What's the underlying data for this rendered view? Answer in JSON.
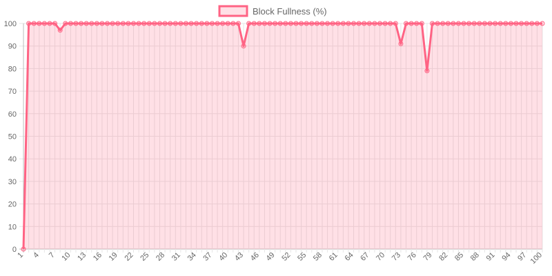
{
  "colors": {
    "line": "#ff6384",
    "fill": "rgba(255, 99, 132, 0.2)",
    "grid": "#e6e6e6",
    "grid_zero": "#bdbdbd",
    "text": "#666666"
  },
  "chart_data": {
    "type": "area",
    "title": "",
    "xlabel": "",
    "ylabel": "",
    "legend_position": "top",
    "grid": true,
    "ylim": [
      0,
      100
    ],
    "y_ticks": [
      0,
      10,
      20,
      30,
      40,
      50,
      60,
      70,
      80,
      90,
      100
    ],
    "x_tick_labels": [
      "1",
      "4",
      "7",
      "10",
      "13",
      "16",
      "19",
      "22",
      "25",
      "28",
      "31",
      "34",
      "37",
      "40",
      "43",
      "46",
      "49",
      "52",
      "55",
      "58",
      "61",
      "64",
      "67",
      "70",
      "73",
      "76",
      "79",
      "82",
      "85",
      "88",
      "91",
      "94",
      "97",
      "100"
    ],
    "x": [
      1,
      2,
      3,
      4,
      5,
      6,
      7,
      8,
      9,
      10,
      11,
      12,
      13,
      14,
      15,
      16,
      17,
      18,
      19,
      20,
      21,
      22,
      23,
      24,
      25,
      26,
      27,
      28,
      29,
      30,
      31,
      32,
      33,
      34,
      35,
      36,
      37,
      38,
      39,
      40,
      41,
      42,
      43,
      44,
      45,
      46,
      47,
      48,
      49,
      50,
      51,
      52,
      53,
      54,
      55,
      56,
      57,
      58,
      59,
      60,
      61,
      62,
      63,
      64,
      65,
      66,
      67,
      68,
      69,
      70,
      71,
      72,
      73,
      74,
      75,
      76,
      77,
      78,
      79,
      80,
      81,
      82,
      83,
      84,
      85,
      86,
      87,
      88,
      89,
      90,
      91,
      92,
      93,
      94,
      95,
      96,
      97,
      98,
      99,
      100
    ],
    "series": [
      {
        "name": "Block Fullness (%)",
        "values": [
          0,
          100,
          100,
          100,
          100,
          100,
          100,
          97,
          100,
          100,
          100,
          100,
          100,
          100,
          100,
          100,
          100,
          100,
          100,
          100,
          100,
          100,
          100,
          100,
          100,
          100,
          100,
          100,
          100,
          100,
          100,
          100,
          100,
          100,
          100,
          100,
          100,
          100,
          100,
          100,
          100,
          100,
          90,
          100,
          100,
          100,
          100,
          100,
          100,
          100,
          100,
          100,
          100,
          100,
          100,
          100,
          100,
          100,
          100,
          100,
          100,
          100,
          100,
          100,
          100,
          100,
          100,
          100,
          100,
          100,
          100,
          100,
          91,
          100,
          100,
          100,
          100,
          79,
          100,
          100,
          100,
          100,
          100,
          100,
          100,
          100,
          100,
          100,
          100,
          100,
          100,
          100,
          100,
          100,
          100,
          100,
          100,
          100,
          100,
          100
        ]
      }
    ]
  }
}
